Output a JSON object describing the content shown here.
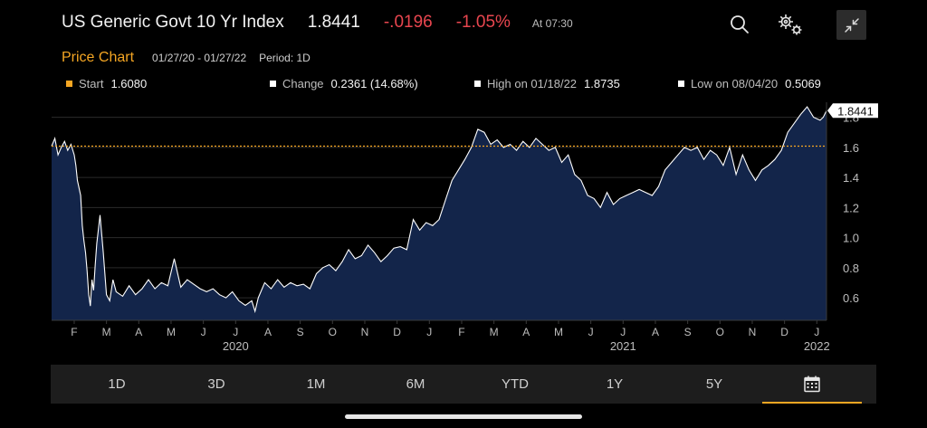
{
  "header": {
    "title": "US Generic Govt 10 Yr Index",
    "last_price": "1.8441",
    "net_change": "-.0196",
    "pct_change": "-1.05%",
    "time": "At 07:30"
  },
  "icons": {
    "search": "search-icon",
    "settings": "gears-icon",
    "collapse": "collapse-arrows-icon"
  },
  "price_chart": {
    "title": "Price Chart",
    "date_range": "01/27/20 - 01/27/22",
    "period": "Period: 1D"
  },
  "legend": {
    "start_label": "Start",
    "start_value": "1.6080",
    "change_label": "Change",
    "change_value": "0.2361 (14.68%)",
    "high_label": "High on 01/18/22",
    "high_value": "1.8735",
    "low_label": "Low on 08/04/20",
    "low_value": "0.5069"
  },
  "colors": {
    "accent": "#f5a623",
    "negative": "#e8464f",
    "area_fill": "#13254a",
    "line": "#ffffff"
  },
  "chart_data": {
    "type": "area",
    "x_tick_labels": [
      "F",
      "M",
      "A",
      "M",
      "J",
      "J",
      "A",
      "S",
      "O",
      "N",
      "D",
      "J",
      "F",
      "M",
      "A",
      "M",
      "J",
      "J",
      "A",
      "S",
      "O",
      "N",
      "D",
      "J"
    ],
    "year_labels": [
      {
        "label": "2020",
        "month_index": 5
      },
      {
        "label": "2021",
        "month_index": 17
      },
      {
        "label": "2022",
        "month_index": 23
      }
    ],
    "y_ticks": [
      "0.6",
      "0.8",
      "1.0",
      "1.2",
      "1.4",
      "1.6",
      "1.8"
    ],
    "ylim": [
      0.45,
      1.9
    ],
    "xlim_months": [
      0,
      24
    ],
    "start_reference": 1.608,
    "last_value_label": "1.8441",
    "x_months": [
      0,
      0.1,
      0.2,
      0.3,
      0.4,
      0.5,
      0.6,
      0.7,
      0.75,
      0.8,
      0.9,
      0.95,
      1.0,
      1.05,
      1.1,
      1.15,
      1.2,
      1.25,
      1.3,
      1.35,
      1.4,
      1.5,
      1.6,
      1.7,
      1.8,
      1.9,
      2.0,
      2.2,
      2.4,
      2.6,
      2.8,
      3.0,
      3.2,
      3.4,
      3.6,
      3.8,
      4.0,
      4.2,
      4.4,
      4.6,
      4.8,
      5.0,
      5.2,
      5.4,
      5.6,
      5.8,
      6.0,
      6.2,
      6.3,
      6.4,
      6.6,
      6.8,
      7.0,
      7.2,
      7.4,
      7.6,
      7.8,
      8.0,
      8.2,
      8.4,
      8.6,
      8.8,
      9.0,
      9.2,
      9.4,
      9.6,
      9.8,
      10.0,
      10.2,
      10.4,
      10.6,
      10.8,
      11.0,
      11.2,
      11.4,
      11.6,
      11.8,
      12.0,
      12.2,
      12.4,
      12.6,
      12.8,
      13.0,
      13.2,
      13.4,
      13.6,
      13.8,
      14.0,
      14.2,
      14.4,
      14.6,
      14.8,
      15.0,
      15.2,
      15.4,
      15.6,
      15.8,
      16.0,
      16.2,
      16.4,
      16.6,
      16.8,
      17.0,
      17.2,
      17.4,
      17.6,
      17.8,
      18.0,
      18.2,
      18.4,
      18.6,
      18.8,
      19.0,
      19.2,
      19.4,
      19.6,
      19.8,
      20.0,
      20.2,
      20.4,
      20.6,
      20.8,
      21.0,
      21.2,
      21.4,
      21.6,
      21.8,
      22.0,
      22.2,
      22.4,
      22.6,
      22.8,
      23.0,
      23.2,
      23.4,
      23.6,
      23.8,
      23.9,
      24.0
    ],
    "values": [
      1.608,
      1.66,
      1.55,
      1.6,
      1.64,
      1.58,
      1.62,
      1.55,
      1.48,
      1.38,
      1.28,
      1.08,
      0.98,
      0.9,
      0.78,
      0.62,
      0.545,
      0.72,
      0.65,
      0.82,
      0.96,
      1.15,
      0.9,
      0.62,
      0.58,
      0.72,
      0.64,
      0.61,
      0.68,
      0.62,
      0.66,
      0.72,
      0.66,
      0.7,
      0.68,
      0.86,
      0.67,
      0.72,
      0.69,
      0.66,
      0.64,
      0.66,
      0.62,
      0.6,
      0.64,
      0.58,
      0.55,
      0.58,
      0.51,
      0.6,
      0.7,
      0.66,
      0.72,
      0.67,
      0.7,
      0.68,
      0.69,
      0.66,
      0.76,
      0.8,
      0.82,
      0.78,
      0.84,
      0.92,
      0.86,
      0.88,
      0.95,
      0.9,
      0.84,
      0.88,
      0.93,
      0.94,
      0.92,
      1.12,
      1.05,
      1.1,
      1.08,
      1.12,
      1.25,
      1.38,
      1.45,
      1.52,
      1.6,
      1.72,
      1.7,
      1.62,
      1.65,
      1.6,
      1.62,
      1.58,
      1.64,
      1.6,
      1.66,
      1.62,
      1.58,
      1.6,
      1.5,
      1.55,
      1.42,
      1.38,
      1.28,
      1.26,
      1.2,
      1.3,
      1.22,
      1.26,
      1.28,
      1.3,
      1.32,
      1.3,
      1.28,
      1.34,
      1.45,
      1.5,
      1.55,
      1.6,
      1.58,
      1.6,
      1.52,
      1.58,
      1.55,
      1.48,
      1.6,
      1.42,
      1.55,
      1.45,
      1.38,
      1.45,
      1.48,
      1.52,
      1.58,
      1.7,
      1.76,
      1.82,
      1.87,
      1.8,
      1.78,
      1.8,
      1.8441
    ]
  }
}
